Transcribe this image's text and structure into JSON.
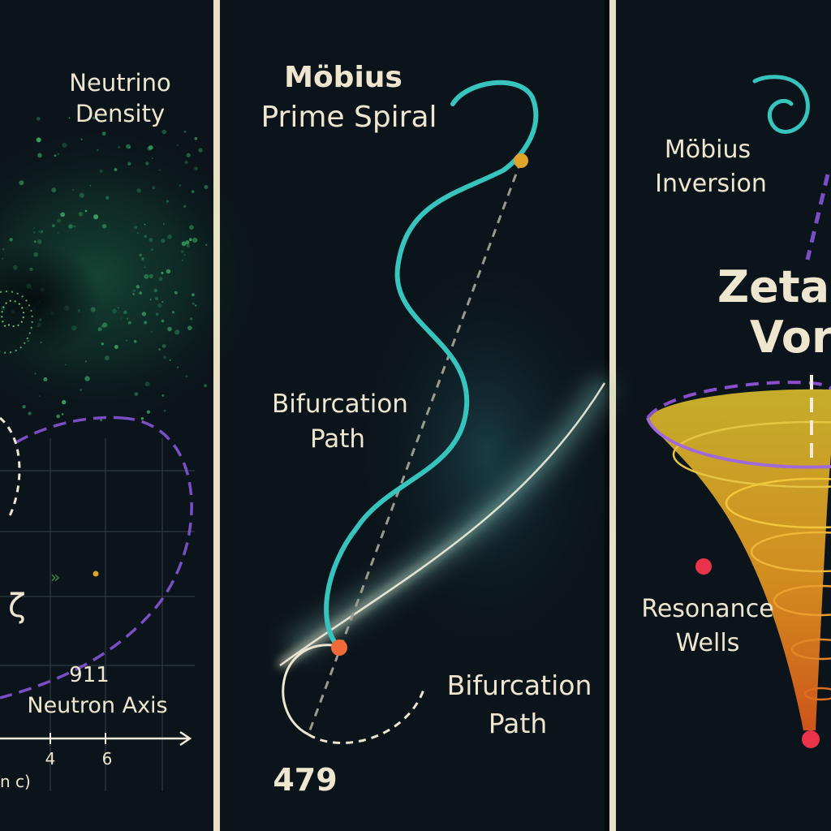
{
  "panel_left": {
    "title_line1": "Neutrino",
    "title_line2": "Density",
    "zeta_symbol": "ζ",
    "axis_value": "911",
    "axis_label": "Neutron Axis",
    "tick_4": "4",
    "tick_6": "6",
    "axis_fragment": "n c)"
  },
  "panel_middle": {
    "title_line1": "Möbius",
    "title_line2": "Prime Spiral",
    "upper_label_line1": "Bifurcation",
    "upper_label_line2": "Path",
    "lower_label_line1": "Bifurcation",
    "lower_label_line2": "Path",
    "number": "479"
  },
  "panel_right": {
    "inversion_line1": "Möbius",
    "inversion_line2": "Inversion",
    "title_line1": "Zeta (",
    "title_line2": "Vort",
    "wells_line1": "Resonance",
    "wells_line2": "Wells"
  },
  "colors": {
    "background": "#0b141a",
    "divider": "#e9e1c6",
    "teal": "#36c4bd",
    "purple": "#7a4ec4",
    "gold": "#e0a42a",
    "orange": "#f06a3a",
    "red": "#e8334a",
    "text": "#efe6cf"
  }
}
